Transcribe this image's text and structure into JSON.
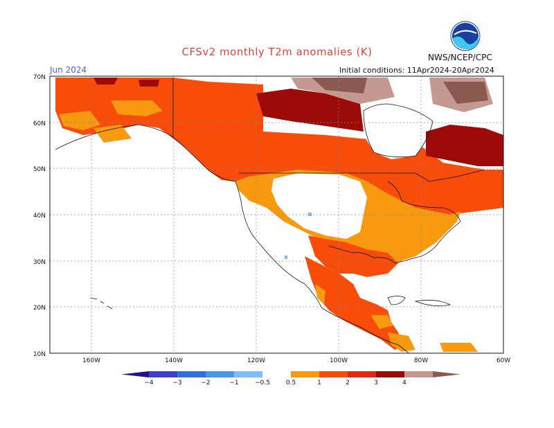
{
  "header": {
    "title": "CFSv2 monthly T2m anomalies (K)",
    "valid_month": "Jun 2024",
    "initial_conditions": "Initial conditions: 11Apr2024-20Apr2024",
    "agency": "NWS/NCEP/CPC",
    "logo_text": "NOAA"
  },
  "map": {
    "lat_range": [
      10,
      70
    ],
    "lon_range": [
      -170,
      -60
    ],
    "lat_ticks": [
      "10N",
      "20N",
      "30N",
      "40N",
      "50N",
      "60N",
      "70N"
    ],
    "lon_ticks": [
      "160W",
      "140W",
      "120W",
      "100W",
      "80W",
      "60W"
    ]
  },
  "colorbar": {
    "labels": [
      "−4",
      "−3",
      "−2",
      "−1",
      "−0.5",
      "0.5",
      "1",
      "2",
      "3",
      "4"
    ],
    "colors": {
      "lt_-4": "#2a1089",
      "-4_-3": "#3d40c8",
      "-3_-2": "#2f6fd8",
      "-2_-1": "#4898ea",
      "-1_-0.5": "#7fbcf5",
      "neutral": "#ffffff",
      "0.5_1": "#f89a0f",
      "1_2": "#f84c0a",
      "2_3": "#e02a10",
      "3_4": "#9c0a0a",
      "4_5": "#c49a90",
      "gt_5": "#8a5a50"
    }
  }
}
